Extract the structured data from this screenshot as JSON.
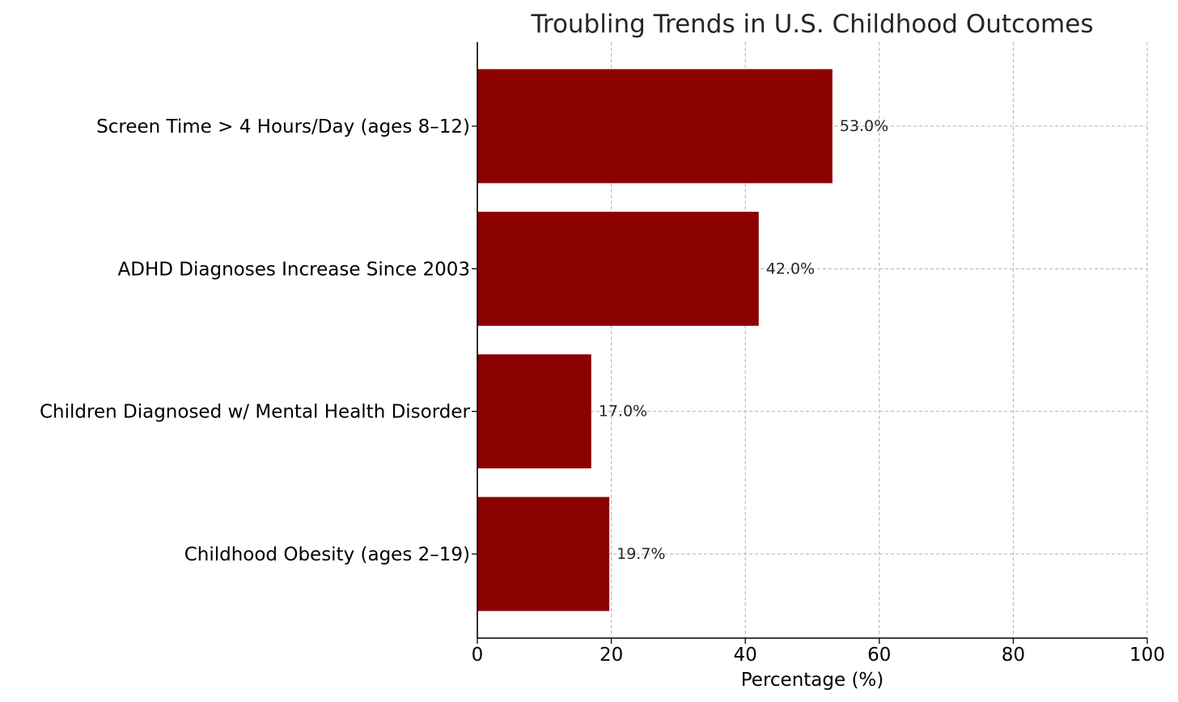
{
  "chart_data": {
    "type": "bar",
    "orientation": "horizontal",
    "title": "Troubling Trends in U.S. Childhood Outcomes",
    "xlabel": "Percentage (%)",
    "ylabel": "",
    "xlim": [
      0,
      100
    ],
    "x_ticks": [
      "0",
      "20",
      "40",
      "60",
      "80",
      "100"
    ],
    "grid": true,
    "bar_color": "#8b0000",
    "categories": [
      "Screen Time > 4 Hours/Day (ages 8–12)",
      "ADHD Diagnoses Increase Since 2003",
      "Children Diagnosed w/ Mental Health Disorder",
      "Childhood Obesity (ages 2–19)"
    ],
    "values": [
      53.0,
      42.0,
      17.0,
      19.7
    ],
    "value_labels": [
      "53.0%",
      "42.0%",
      "17.0%",
      "19.7%"
    ]
  }
}
